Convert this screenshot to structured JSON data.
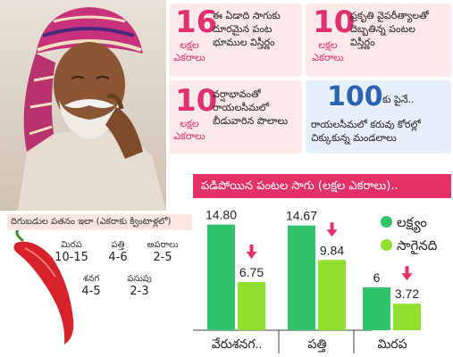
{
  "cards": [
    {
      "number": "16",
      "unit_line1": "లక్షల",
      "unit_line2": "ఎకరాలు",
      "desc_lines": [
        "ఈ ఏడాది సాగుకు",
        "దూరమైన పంట",
        "భూముల విస్తీర్ణం"
      ]
    },
    {
      "number": "10",
      "unit_line1": "లక్షల",
      "unit_line2": "ఎకరాలు",
      "desc_lines": [
        "ప్రకృతి వైపరీత్యాలతో",
        "దెబ్బతిన్న పంటల",
        "విస్తీర్ణం"
      ]
    },
    {
      "number": "10",
      "unit_line1": "లక్షల",
      "unit_line2": "ఎకరాలు",
      "desc_lines": [
        "వర్షాభావంతో",
        "రాయలసీమలో",
        "బీడువారిన పొలాలు"
      ]
    },
    {
      "number": "100",
      "suffix": "కు పైనే..",
      "desc_lines": [
        "రాయలసీమలో కరువు కోరల్లో",
        "చిక్కుకున్న మండలాలు"
      ]
    }
  ],
  "yield_panel": {
    "title": "దిగుబడుల పతనం ఇలా (ఎకరాకు క్వింటాళ్లలో)",
    "items": [
      {
        "name": "మిరప",
        "value": "10-15"
      },
      {
        "name": "పత్తి",
        "value": "4-6"
      },
      {
        "name": "అపరాలు",
        "value": "2-5"
      },
      {
        "name": "శనగ",
        "value": "4-5"
      },
      {
        "name": "పసుపు",
        "value": "2-3"
      }
    ]
  },
  "chart_data": {
    "type": "bar",
    "title": "పడిపోయిన పంటల సాగు (లక్షల ఎకరాలు)..",
    "categories": [
      "వేరుశనగ..",
      "పత్తి",
      "మిరప"
    ],
    "series": [
      {
        "name": "లక్ష్యం",
        "color": "#2fc46b",
        "values": [
          14.8,
          14.67,
          6
        ]
      },
      {
        "name": "సాగైనది",
        "color": "#8fe02c",
        "values": [
          6.75,
          9.84,
          3.72
        ]
      }
    ],
    "value_labels": [
      [
        "14.80",
        "6.75"
      ],
      [
        "14.67",
        "9.84"
      ],
      [
        "6",
        "3.72"
      ]
    ],
    "ylim": [
      0,
      16
    ],
    "legend_position": "right",
    "decline_arrows": true
  },
  "colors": {
    "accent": "#e43267",
    "pink_text": "#e0306e",
    "blue_text": "#2d63b5"
  }
}
